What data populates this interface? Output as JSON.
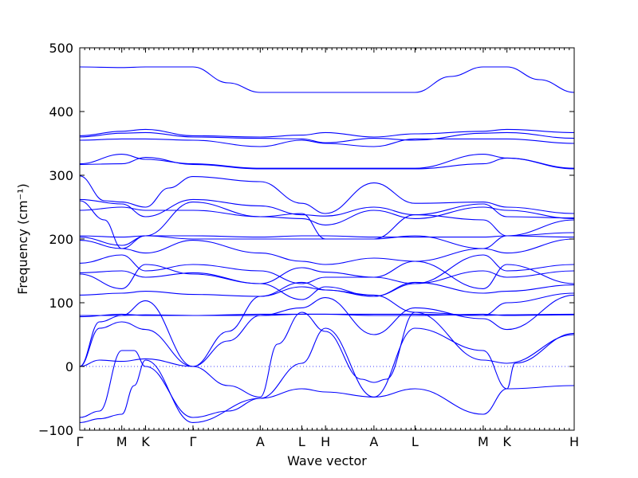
{
  "chart_data": {
    "type": "line",
    "title": "",
    "xlabel": "Wave vector",
    "ylabel": "Frequency (cm⁻¹)",
    "ylim": [
      -100,
      500
    ],
    "yticks": [
      -100,
      0,
      100,
      200,
      300,
      400,
      500
    ],
    "xlim": [
      0,
      1
    ],
    "x_ticks": [
      {
        "label": "Γ",
        "x": 0.0
      },
      {
        "label": "M",
        "x": 0.085
      },
      {
        "label": "K",
        "x": 0.133
      },
      {
        "label": "Γ",
        "x": 0.229
      },
      {
        "label": "A",
        "x": 0.365
      },
      {
        "label": "L",
        "x": 0.449
      },
      {
        "label": "H",
        "x": 0.497
      },
      {
        "label": "A",
        "x": 0.595
      },
      {
        "label": "L",
        "x": 0.678
      },
      {
        "label": "M",
        "x": 0.816
      },
      {
        "label": "K",
        "x": 0.864
      },
      {
        "label": "H",
        "x": 1.0
      }
    ],
    "zero_line": 0,
    "grid": false,
    "line_color": "#0000ff",
    "series": [
      {
        "x": [
          0,
          0.085,
          0.133,
          0.229,
          0.3,
          0.365,
          0.449,
          0.497,
          0.595,
          0.678,
          0.75,
          0.816,
          0.864,
          0.93,
          1.0
        ],
        "values": [
          470,
          469,
          470,
          470,
          445,
          430,
          430,
          430,
          430,
          430,
          455,
          470,
          470,
          450,
          430
        ]
      },
      {
        "x": [
          0,
          0.085,
          0.133,
          0.229,
          0.365,
          0.449,
          0.497,
          0.595,
          0.678,
          0.816,
          0.864,
          1.0
        ],
        "values": [
          362,
          369,
          372,
          362,
          360,
          363,
          367,
          360,
          365,
          369,
          372,
          367
        ]
      },
      {
        "x": [
          0,
          0.085,
          0.133,
          0.229,
          0.365,
          0.449,
          0.497,
          0.595,
          0.678,
          0.816,
          0.864,
          1.0
        ],
        "values": [
          360,
          366,
          367,
          360,
          358,
          357,
          351,
          358,
          355,
          366,
          367,
          358
        ]
      },
      {
        "x": [
          0,
          0.085,
          0.133,
          0.229,
          0.365,
          0.449,
          0.497,
          0.595,
          0.678,
          0.816,
          0.864,
          1.0
        ],
        "values": [
          355,
          357,
          357,
          355,
          345,
          355,
          350,
          345,
          357,
          357,
          357,
          350
        ]
      },
      {
        "x": [
          0,
          0.085,
          0.133,
          0.229,
          0.365,
          0.449,
          0.497,
          0.595,
          0.678,
          0.816,
          0.864,
          1.0
        ],
        "values": [
          318,
          333,
          325,
          318,
          311,
          311,
          311,
          311,
          311,
          333,
          327,
          311
        ]
      },
      {
        "x": [
          0,
          0.085,
          0.133,
          0.229,
          0.365,
          0.449,
          0.497,
          0.595,
          0.678,
          0.816,
          0.864,
          1.0
        ],
        "values": [
          317,
          318,
          328,
          317,
          310,
          310,
          310,
          310,
          310,
          318,
          327,
          310
        ]
      },
      {
        "x": [
          0,
          0.05,
          0.085,
          0.133,
          0.18,
          0.229,
          0.365,
          0.449,
          0.497,
          0.595,
          0.678,
          0.816,
          0.864,
          1.0
        ],
        "values": [
          299,
          260,
          258,
          250,
          280,
          298,
          290,
          256,
          240,
          288,
          256,
          258,
          250,
          240
        ]
      },
      {
        "x": [
          0,
          0.085,
          0.133,
          0.229,
          0.365,
          0.449,
          0.497,
          0.595,
          0.678,
          0.816,
          0.864,
          1.0
        ],
        "values": [
          262,
          255,
          235,
          262,
          252,
          238,
          236,
          250,
          238,
          255,
          235,
          233
        ]
      },
      {
        "x": [
          0,
          0.085,
          0.133,
          0.229,
          0.365,
          0.449,
          0.497,
          0.595,
          0.678,
          0.816,
          0.864,
          1.0
        ],
        "values": [
          245,
          250,
          245,
          245,
          235,
          232,
          222,
          245,
          232,
          250,
          245,
          232
        ]
      },
      {
        "x": [
          0,
          0.05,
          0.085,
          0.133,
          0.229,
          0.365,
          0.449,
          0.497,
          0.595,
          0.678,
          0.816,
          0.864,
          1.0
        ],
        "values": [
          260,
          230,
          185,
          205,
          258,
          235,
          240,
          200,
          200,
          238,
          230,
          205,
          230
        ]
      },
      {
        "x": [
          0,
          0.085,
          0.133,
          0.229,
          0.365,
          0.449,
          0.497,
          0.595,
          0.678,
          0.816,
          0.864,
          1.0
        ],
        "values": [
          205,
          203,
          205,
          205,
          203,
          205,
          205,
          203,
          203,
          203,
          205,
          203
        ]
      },
      {
        "x": [
          0,
          0.085,
          0.133,
          0.229,
          0.365,
          0.449,
          0.497,
          0.595,
          0.678,
          0.816,
          0.864,
          1.0
        ],
        "values": [
          203,
          190,
          205,
          200,
          200,
          200,
          200,
          200,
          205,
          185,
          205,
          210
        ]
      },
      {
        "x": [
          0,
          0.085,
          0.133,
          0.229,
          0.365,
          0.449,
          0.497,
          0.595,
          0.678,
          0.816,
          0.864,
          1.0
        ],
        "values": [
          198,
          185,
          178,
          198,
          178,
          165,
          160,
          170,
          165,
          185,
          178,
          200
        ]
      },
      {
        "x": [
          0,
          0.085,
          0.133,
          0.229,
          0.365,
          0.449,
          0.497,
          0.595,
          0.678,
          0.816,
          0.864,
          1.0
        ],
        "values": [
          162,
          175,
          150,
          160,
          150,
          130,
          140,
          140,
          130,
          175,
          150,
          160
        ]
      },
      {
        "x": [
          0,
          0.085,
          0.133,
          0.229,
          0.365,
          0.449,
          0.497,
          0.595,
          0.678,
          0.816,
          0.864,
          1.0
        ],
        "values": [
          147,
          150,
          140,
          147,
          130,
          105,
          125,
          110,
          130,
          150,
          140,
          150
        ]
      },
      {
        "x": [
          0,
          0.085,
          0.133,
          0.229,
          0.365,
          0.449,
          0.497,
          0.595,
          0.678,
          0.816,
          0.864,
          1.0
        ],
        "values": [
          145,
          122,
          160,
          145,
          130,
          155,
          148,
          140,
          165,
          122,
          160,
          130
        ]
      },
      {
        "x": [
          0,
          0.085,
          0.133,
          0.229,
          0.365,
          0.449,
          0.497,
          0.595,
          0.678,
          0.816,
          0.864,
          1.0
        ],
        "values": [
          112,
          115,
          118,
          113,
          110,
          132,
          120,
          110,
          132,
          115,
          118,
          128
        ]
      },
      {
        "x": [
          0,
          0.085,
          0.133,
          0.229,
          0.365,
          0.449,
          0.497,
          0.595,
          0.678,
          0.816,
          0.864,
          1.0
        ],
        "values": [
          80,
          80,
          81,
          80,
          82,
          82,
          82,
          82,
          82,
          80,
          81,
          82
        ]
      },
      {
        "x": [
          0,
          0.085,
          0.133,
          0.229,
          0.365,
          0.449,
          0.497,
          0.595,
          0.678,
          0.816,
          0.864,
          1.0
        ],
        "values": [
          78,
          82,
          80,
          80,
          80,
          82,
          82,
          80,
          80,
          82,
          80,
          81
        ]
      },
      {
        "x": [
          0,
          0.04,
          0.085,
          0.133,
          0.229,
          0.3,
          0.365,
          0.449,
          0.497,
          0.595,
          0.678,
          0.816,
          0.864,
          1.0
        ],
        "values": [
          0,
          70,
          80,
          103,
          0,
          55,
          110,
          125,
          120,
          112,
          85,
          80,
          100,
          115
        ]
      },
      {
        "x": [
          0,
          0.04,
          0.085,
          0.133,
          0.229,
          0.3,
          0.365,
          0.449,
          0.497,
          0.595,
          0.678,
          0.816,
          0.864,
          1.0
        ],
        "values": [
          0,
          60,
          70,
          58,
          0,
          40,
          80,
          92,
          108,
          50,
          92,
          75,
          58,
          112
        ]
      },
      {
        "x": [
          0,
          0.04,
          0.085,
          0.133,
          0.229,
          0.3,
          0.365,
          0.4,
          0.449,
          0.497,
          0.57,
          0.595,
          0.62,
          0.678,
          0.816,
          0.864,
          1.0
        ],
        "values": [
          0,
          10,
          8,
          12,
          0,
          -30,
          -48,
          35,
          85,
          55,
          -20,
          -25,
          -20,
          85,
          10,
          5,
          50
        ]
      },
      {
        "x": [
          0,
          0.04,
          0.085,
          0.11,
          0.133,
          0.229,
          0.3,
          0.365,
          0.449,
          0.497,
          0.595,
          0.678,
          0.816,
          0.864,
          1.0
        ],
        "values": [
          -80,
          -70,
          25,
          25,
          0,
          -80,
          -70,
          -50,
          -35,
          -40,
          -48,
          -35,
          -75,
          -35,
          -30
        ]
      },
      {
        "x": [
          0,
          0.04,
          0.085,
          0.11,
          0.133,
          0.229,
          0.365,
          0.449,
          0.497,
          0.595,
          0.678,
          0.816,
          0.864,
          0.88,
          1.0
        ],
        "values": [
          -88,
          -82,
          -75,
          -30,
          10,
          -88,
          -50,
          5,
          60,
          -48,
          60,
          25,
          -35,
          5,
          52
        ]
      }
    ]
  }
}
